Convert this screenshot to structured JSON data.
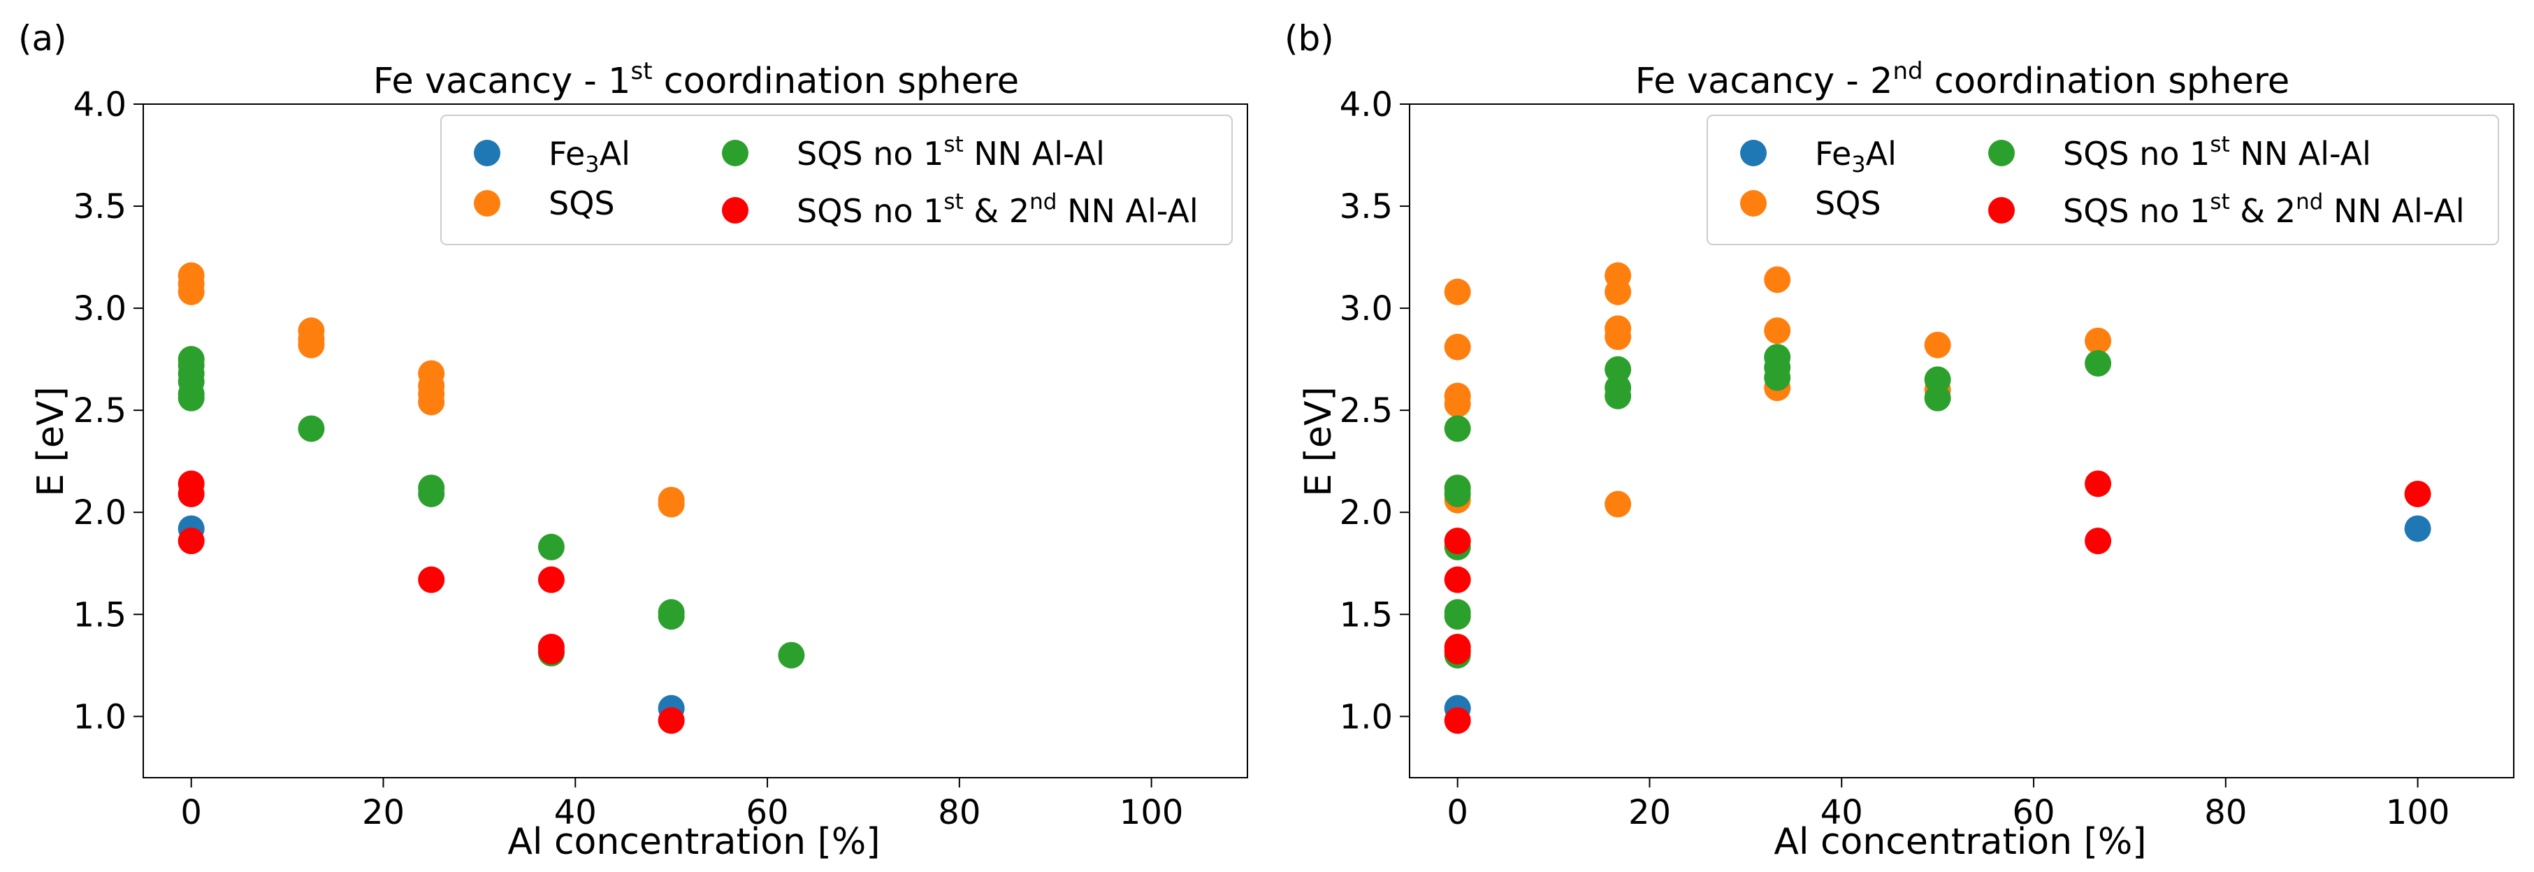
{
  "colors": {
    "Fe3Al": "#1f77b4",
    "SQS": "#ff7f0e",
    "SQS no 1st NN Al-Al": "#2ca02c",
    "SQS no 1st & 2nd NN Al-Al": "#ff0000"
  },
  "legend": {
    "fe3al": {
      "pre": "Fe",
      "sub": "3",
      "post": "Al"
    },
    "sqs": {
      "text": "SQS"
    },
    "no1": {
      "pre": "SQS no 1",
      "sup": "st",
      "post": " NN Al-Al"
    },
    "no12": {
      "pre": "SQS no 1",
      "sup1": "st",
      "mid": " & 2",
      "sup2": "nd",
      "post": " NN Al-Al"
    }
  },
  "chart_data": [
    {
      "panel_label": "(a)",
      "type": "scatter",
      "title": {
        "pre": "Fe vacancy - 1",
        "sup": "st",
        "post": " coordination sphere"
      },
      "xlabel": "Al concentration [%]",
      "ylabel": "E [eV]",
      "xlim": [
        -5,
        110
      ],
      "ylim": [
        0.7,
        4.0
      ],
      "xticks": [
        0,
        20,
        40,
        60,
        80,
        100
      ],
      "yticks": [
        1.0,
        1.5,
        2.0,
        2.5,
        3.0,
        3.5,
        4.0
      ],
      "ytick_labels": [
        "1.0",
        "1.5",
        "2.0",
        "2.5",
        "3.0",
        "3.5",
        "4.0"
      ],
      "grid": false,
      "legend_position": "top-right",
      "series": [
        {
          "name": "Fe3Al",
          "points": [
            [
              0,
              1.92
            ],
            [
              50,
              1.04
            ]
          ]
        },
        {
          "name": "SQS",
          "points": [
            [
              0,
              3.16
            ],
            [
              0,
              3.12
            ],
            [
              0,
              3.08
            ],
            [
              12.5,
              2.89
            ],
            [
              12.5,
              2.85
            ],
            [
              12.5,
              2.82
            ],
            [
              25,
              2.68
            ],
            [
              25,
              2.62
            ],
            [
              25,
              2.58
            ],
            [
              25,
              2.54
            ],
            [
              50,
              2.06
            ],
            [
              50,
              2.04
            ]
          ]
        },
        {
          "name": "SQS no 1st NN Al-Al",
          "points": [
            [
              0,
              2.75
            ],
            [
              0,
              2.72
            ],
            [
              0,
              2.68
            ],
            [
              0,
              2.64
            ],
            [
              0,
              2.58
            ],
            [
              0,
              2.56
            ],
            [
              12.5,
              2.41
            ],
            [
              25,
              2.12
            ],
            [
              25,
              2.09
            ],
            [
              37.5,
              1.83
            ],
            [
              37.5,
              1.31
            ],
            [
              50,
              1.51
            ],
            [
              50,
              1.49
            ],
            [
              62.5,
              1.3
            ]
          ]
        },
        {
          "name": "SQS no 1st & 2nd NN Al-Al",
          "points": [
            [
              0,
              2.14
            ],
            [
              0,
              2.09
            ],
            [
              0,
              1.86
            ],
            [
              25,
              1.67
            ],
            [
              37.5,
              1.67
            ],
            [
              37.5,
              1.34
            ],
            [
              37.5,
              1.32
            ],
            [
              50,
              0.98
            ]
          ]
        }
      ]
    },
    {
      "panel_label": "(b)",
      "type": "scatter",
      "title": {
        "pre": "Fe vacancy - 2",
        "sup": "nd",
        "post": " coordination sphere"
      },
      "xlabel": "Al concentration [%]",
      "ylabel": "E [eV]",
      "xlim": [
        -5,
        110
      ],
      "ylim": [
        0.7,
        4.0
      ],
      "xticks": [
        0,
        20,
        40,
        60,
        80,
        100
      ],
      "yticks": [
        1.0,
        1.5,
        2.0,
        2.5,
        3.0,
        3.5,
        4.0
      ],
      "ytick_labels": [
        "1.0",
        "1.5",
        "2.0",
        "2.5",
        "3.0",
        "3.5",
        "4.0"
      ],
      "grid": false,
      "legend_position": "top-right",
      "series": [
        {
          "name": "Fe3Al",
          "points": [
            [
              0,
              1.04
            ],
            [
              100,
              1.92
            ]
          ]
        },
        {
          "name": "SQS",
          "points": [
            [
              0,
              3.08
            ],
            [
              0,
              2.81
            ],
            [
              0,
              2.57
            ],
            [
              0,
              2.53
            ],
            [
              0,
              2.06
            ],
            [
              16.7,
              3.16
            ],
            [
              16.7,
              3.08
            ],
            [
              16.7,
              2.9
            ],
            [
              16.7,
              2.86
            ],
            [
              16.7,
              2.04
            ],
            [
              33.3,
              3.14
            ],
            [
              33.3,
              2.89
            ],
            [
              33.3,
              2.61
            ],
            [
              50,
              2.82
            ],
            [
              50,
              2.6
            ],
            [
              66.7,
              2.84
            ]
          ]
        },
        {
          "name": "SQS no 1st NN Al-Al",
          "points": [
            [
              0,
              2.41
            ],
            [
              0,
              2.12
            ],
            [
              0,
              2.09
            ],
            [
              0,
              1.83
            ],
            [
              0,
              1.51
            ],
            [
              0,
              1.49
            ],
            [
              0,
              1.3
            ],
            [
              16.7,
              2.7
            ],
            [
              16.7,
              2.61
            ],
            [
              16.7,
              2.57
            ],
            [
              33.3,
              2.76
            ],
            [
              33.3,
              2.71
            ],
            [
              33.3,
              2.66
            ],
            [
              50,
              2.65
            ],
            [
              50,
              2.56
            ],
            [
              66.7,
              2.73
            ]
          ]
        },
        {
          "name": "SQS no 1st & 2nd NN Al-Al",
          "points": [
            [
              0,
              1.86
            ],
            [
              0,
              1.67
            ],
            [
              0,
              1.34
            ],
            [
              0,
              1.32
            ],
            [
              0,
              0.98
            ],
            [
              66.7,
              2.14
            ],
            [
              66.7,
              1.86
            ],
            [
              100,
              2.09
            ]
          ]
        }
      ]
    }
  ]
}
